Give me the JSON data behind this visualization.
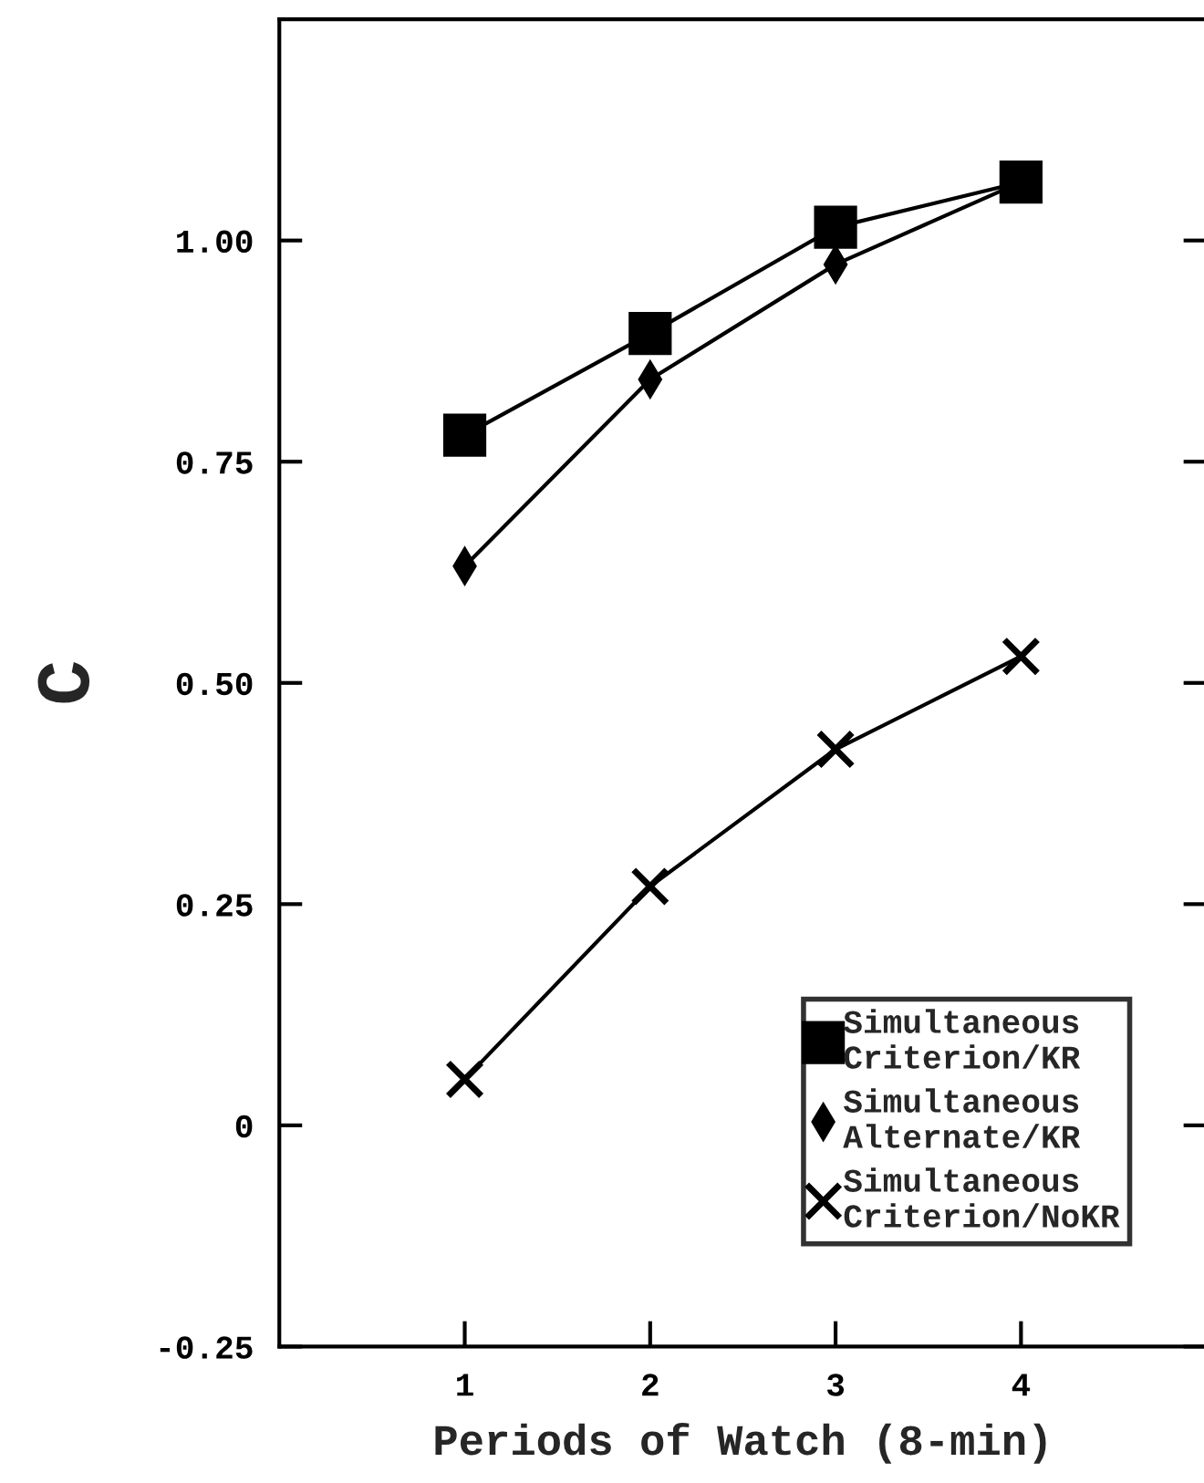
{
  "chart_data": {
    "type": "line",
    "xlabel": "Periods of Watch (8-min)",
    "ylabel": "C",
    "x": [
      1,
      2,
      3,
      4
    ],
    "series": [
      {
        "name": "Simultaneous\nCriterion/KR",
        "color": "#000000",
        "marker": "square",
        "values": [
          0.78,
          0.895,
          1.015,
          1.066
        ]
      },
      {
        "name": "Simultaneous\nAlternate/KR",
        "color": "#000000",
        "marker": "diamond",
        "values": [
          0.632,
          0.843,
          0.973,
          1.066
        ]
      },
      {
        "name": "Simultaneous\nCriterion/NoKR",
        "color": "#000000",
        "marker": "cross",
        "values": [
          0.052,
          0.27,
          0.425,
          0.53
        ]
      }
    ],
    "xlim": [
      0,
      5
    ],
    "xticks": [
      1,
      2,
      3,
      4
    ],
    "ylim": [
      -0.25,
      1.25
    ],
    "yticks": [
      {
        "value": -0.25,
        "label": "-0.25"
      },
      0,
      {
        "value": 0.25,
        "label": "0.25"
      },
      {
        "value": 0.5,
        "label": "0.50"
      },
      {
        "value": 0.75,
        "label": "0.75"
      },
      {
        "value": 1.0,
        "label": "1.00"
      }
    ],
    "legend": "bottom right",
    "grid": false,
    "line_style": "solid"
  }
}
